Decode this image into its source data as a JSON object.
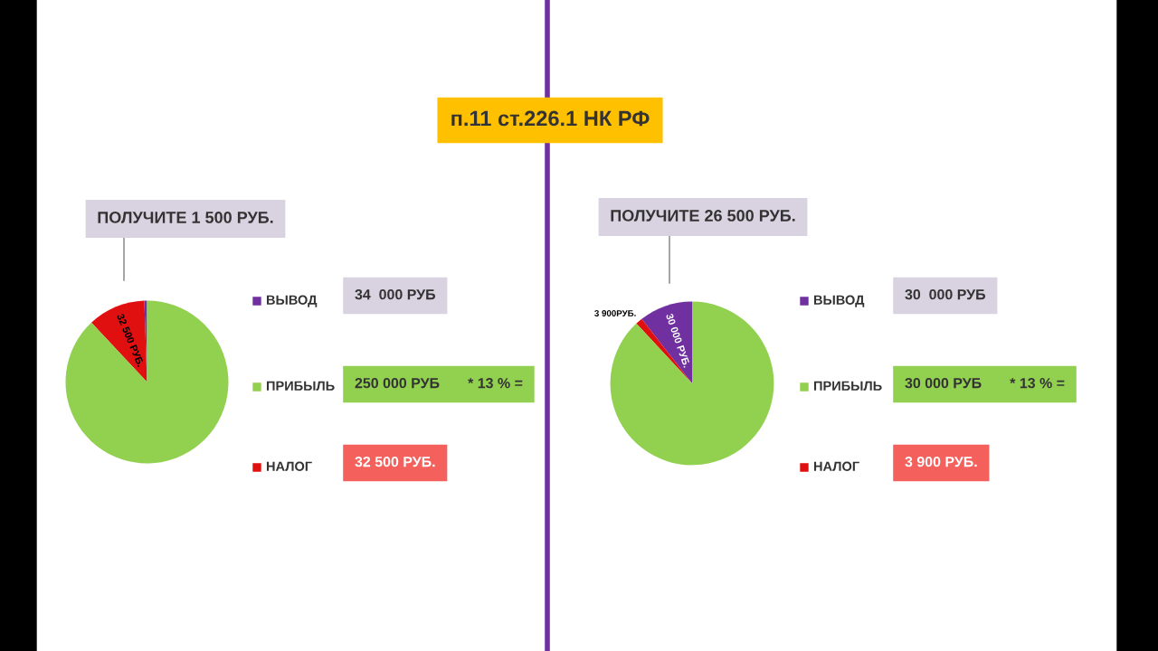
{
  "chart_data": [
    {
      "type": "pie",
      "title": "п.11 ст.226.1 НК РФ",
      "categories": [
        "ВЫВОД",
        "НАЛОГ",
        "ПРИБЫЛЬ"
      ],
      "values": [
        1500,
        32500,
        250000
      ],
      "colors": [
        "#7030a0",
        "#e01010",
        "#92d050"
      ],
      "value_labels": [
        null,
        "32 500 РУБ.",
        null
      ],
      "legend": "right",
      "annotations": [
        "ПОЛУЧИТЕ 1 500 РУБ.",
        "34  000 РУБ",
        "32 500 РУБ.",
        "250 000 РУБ       * 13 % ="
      ]
    },
    {
      "type": "pie",
      "categories": [
        "ВЫВОД",
        "НАЛОГ",
        "ПРИБЫЛЬ"
      ],
      "values": [
        30000,
        3900,
        250000
      ],
      "colors": [
        "#7030a0",
        "#e01010",
        "#92d050"
      ],
      "value_labels": [
        "30 000 РУБ.",
        "3 900РУБ.",
        null
      ],
      "legend": "right",
      "annotations": [
        "ПОЛУЧИТЕ 26 500 РУБ.",
        "30  000 РУБ",
        "3 900 РУБ.",
        "30 000 РУБ       * 13 % ="
      ]
    }
  ]
}
